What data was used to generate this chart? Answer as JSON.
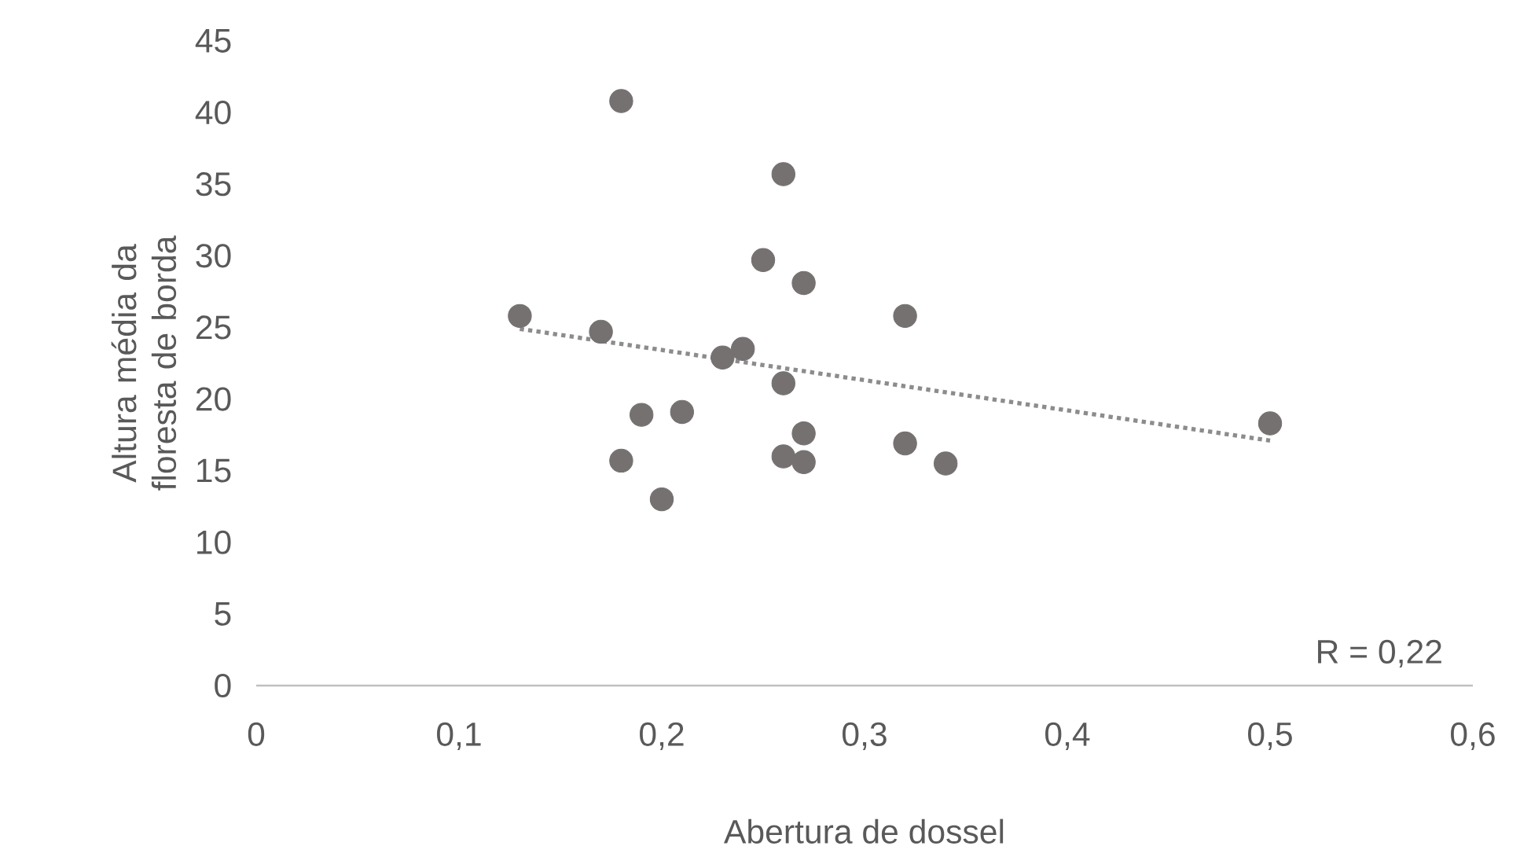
{
  "chart_data": {
    "type": "scatter",
    "xlabel": "Abertura de dossel",
    "ylabel": "Altura média da floresta de borda",
    "xlim": [
      0,
      0.6
    ],
    "xticks": [
      0,
      {
        "value": 0.1,
        "label": "0,1"
      },
      {
        "value": 0.2,
        "label": "0,2"
      },
      {
        "value": 0.3,
        "label": "0,3"
      },
      {
        "value": 0.4,
        "label": "0,4"
      },
      {
        "value": 0.5,
        "label": "0,5"
      },
      {
        "value": 0.6,
        "label": "0,6"
      }
    ],
    "ylim": [
      0,
      45
    ],
    "yticks": [
      0,
      5,
      10,
      15,
      20,
      25,
      30,
      35,
      40,
      45
    ],
    "grid": false,
    "annotations": [
      "R = 0,22"
    ],
    "series": [
      {
        "marker": "circle",
        "color": "#767171",
        "x": [
          0.13,
          0.18,
          0.17,
          0.18,
          0.19,
          0.2,
          0.21,
          0.23,
          0.24,
          0.25,
          0.26,
          0.26,
          0.26,
          0.27,
          0.27,
          0.27,
          0.32,
          0.32,
          0.34,
          0.5
        ],
        "values": [
          25.8,
          40.8,
          24.7,
          15.7,
          18.9,
          13.0,
          19.1,
          22.9,
          23.5,
          29.7,
          35.7,
          21.1,
          16.0,
          28.1,
          17.6,
          15.6,
          25.8,
          16.9,
          15.5,
          18.3
        ]
      },
      {
        "type": "line",
        "color": "#8c8c8c",
        "line_style": "dotted",
        "marker": "none",
        "x": [
          0.13,
          0.5
        ],
        "values": [
          24.9,
          17.1
        ]
      }
    ]
  }
}
